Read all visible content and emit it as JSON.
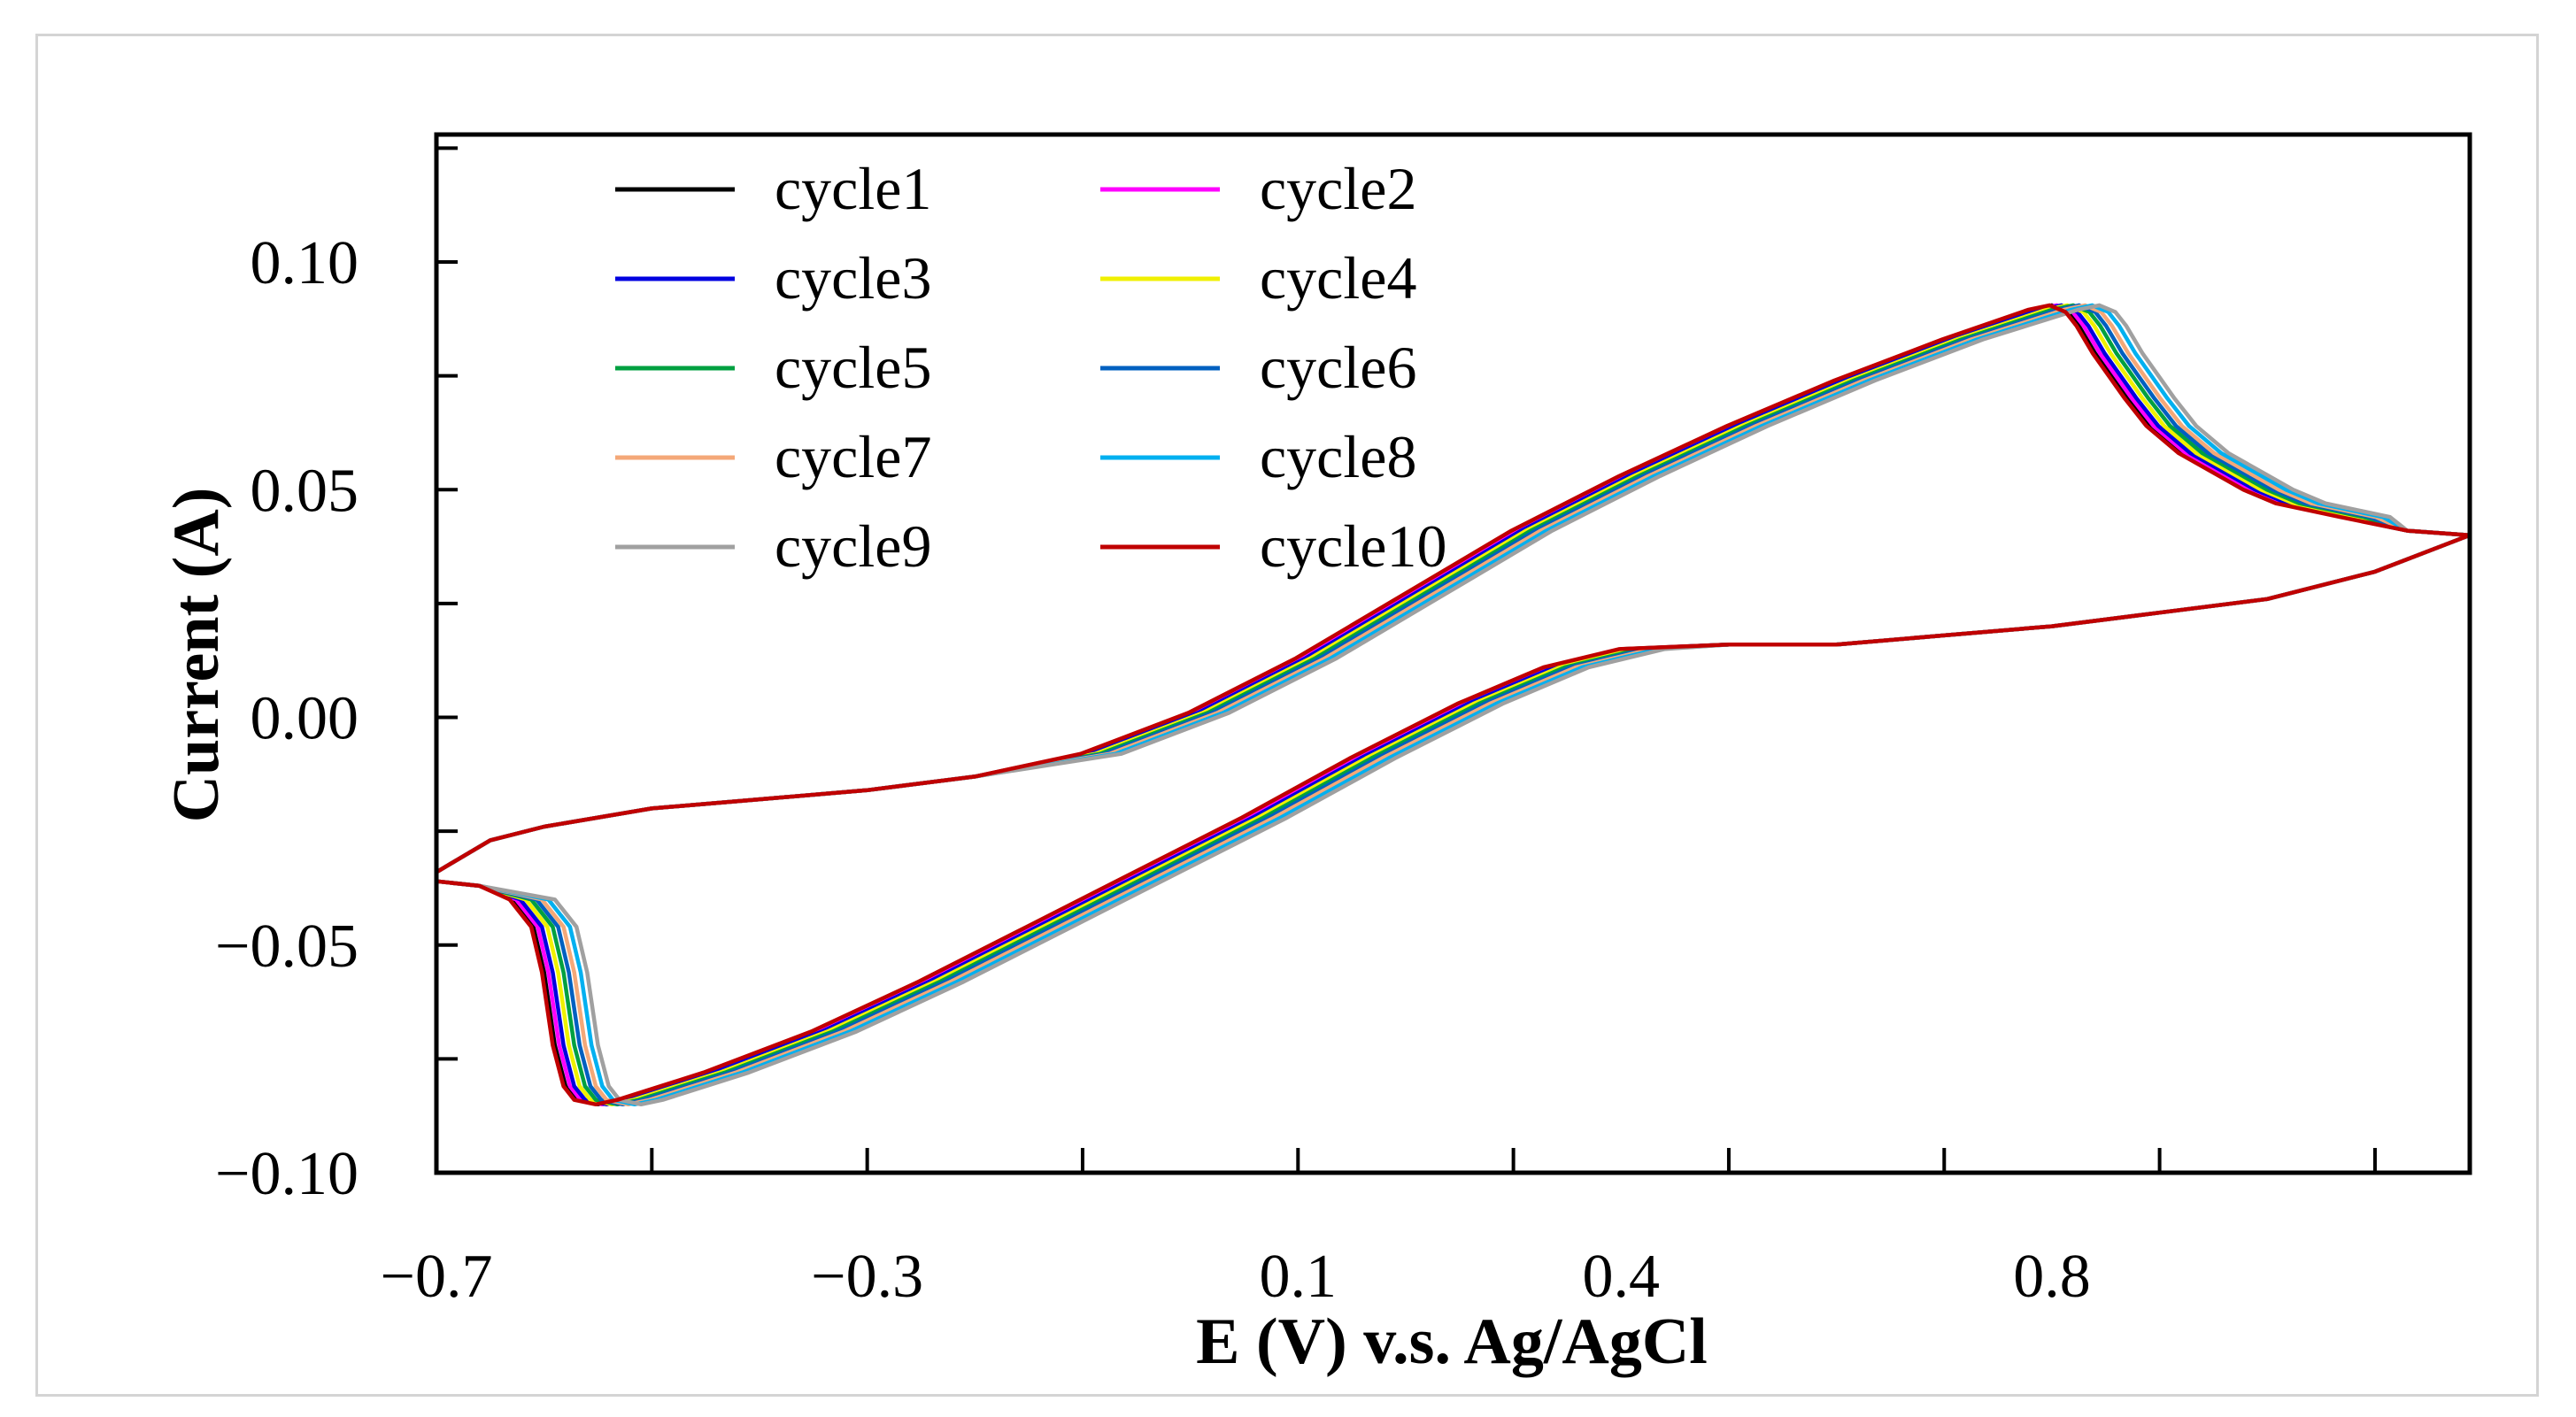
{
  "chart_data": {
    "type": "line",
    "title": "",
    "xlabel": "E (V) v.s. Ag/AgCl",
    "ylabel": "Current (A)",
    "xlim": [
      -0.7,
      1.188
    ],
    "ylim": [
      -0.1,
      0.128
    ],
    "x_tick_values": [
      -0.7,
      -0.3,
      0.1,
      0.4,
      0.8
    ],
    "x_tick_labels": [
      "−0.7",
      "−0.3",
      "0.1",
      "0.4",
      "0.8"
    ],
    "y_tick_values": [
      0.1,
      0.05,
      0.0,
      -0.05,
      -0.1
    ],
    "y_tick_labels": [
      "0.10",
      "0.05",
      "0.00",
      "−0.05",
      "−0.10"
    ],
    "grid": false,
    "legend_position": "top-left",
    "series": [
      {
        "name": "cycle1",
        "color": "#000000",
        "shift": 0.0
      },
      {
        "name": "cycle2",
        "color": "#ff00ff",
        "shift": 0.004
      },
      {
        "name": "cycle3",
        "color": "#0000e0",
        "shift": 0.008
      },
      {
        "name": "cycle4",
        "color": "#f0f000",
        "shift": 0.013
      },
      {
        "name": "cycle5",
        "color": "#00a040",
        "shift": 0.018
      },
      {
        "name": "cycle6",
        "color": "#0060c0",
        "shift": 0.023
      },
      {
        "name": "cycle7",
        "color": "#f4a878",
        "shift": 0.028
      },
      {
        "name": "cycle8",
        "color": "#00b0f0",
        "shift": 0.034
      },
      {
        "name": "cycle9",
        "color": "#a0a0a0",
        "shift": 0.04
      },
      {
        "name": "cycle10",
        "color": "#c00000",
        "shift": -0.002
      }
    ],
    "reverse_scan": [
      [
        1.188,
        0.04
      ],
      [
        1.13,
        0.041
      ],
      [
        1.07,
        0.044
      ],
      [
        1.01,
        0.047
      ],
      [
        0.98,
        0.05
      ],
      [
        0.95,
        0.054
      ],
      [
        0.92,
        0.058
      ],
      [
        0.89,
        0.064
      ],
      [
        0.87,
        0.07
      ],
      [
        0.855,
        0.075
      ],
      [
        0.84,
        0.08
      ],
      [
        0.825,
        0.086
      ],
      [
        0.815,
        0.089
      ],
      [
        0.8,
        0.0905
      ],
      [
        0.78,
        0.0895
      ],
      [
        0.7,
        0.083
      ],
      [
        0.6,
        0.074
      ],
      [
        0.5,
        0.064
      ],
      [
        0.4,
        0.053
      ],
      [
        0.3,
        0.041
      ],
      [
        0.2,
        0.027
      ],
      [
        0.1,
        0.013
      ],
      [
        0.0,
        0.001
      ],
      [
        -0.1,
        -0.008
      ],
      [
        -0.2,
        -0.013
      ],
      [
        -0.3,
        -0.016
      ],
      [
        -0.4,
        -0.018
      ],
      [
        -0.5,
        -0.02
      ],
      [
        -0.6,
        -0.024
      ],
      [
        -0.65,
        -0.027
      ],
      [
        -0.7,
        -0.034
      ]
    ],
    "forward_scan": [
      [
        -0.7,
        -0.036
      ],
      [
        -0.66,
        -0.037
      ],
      [
        -0.63,
        -0.04
      ],
      [
        -0.61,
        -0.046
      ],
      [
        -0.6,
        -0.056
      ],
      [
        -0.59,
        -0.072
      ],
      [
        -0.58,
        -0.081
      ],
      [
        -0.57,
        -0.084
      ],
      [
        -0.55,
        -0.085
      ],
      [
        -0.53,
        -0.084
      ],
      [
        -0.45,
        -0.078
      ],
      [
        -0.35,
        -0.069
      ],
      [
        -0.25,
        -0.058
      ],
      [
        -0.15,
        -0.046
      ],
      [
        -0.05,
        -0.034
      ],
      [
        0.05,
        -0.022
      ],
      [
        0.15,
        -0.009
      ],
      [
        0.25,
        0.003
      ],
      [
        0.33,
        0.011
      ],
      [
        0.4,
        0.015
      ],
      [
        0.5,
        0.016
      ],
      [
        0.6,
        0.016
      ],
      [
        0.7,
        0.018
      ],
      [
        0.8,
        0.02
      ],
      [
        0.9,
        0.023
      ],
      [
        1.0,
        0.026
      ],
      [
        1.1,
        0.032
      ],
      [
        1.188,
        0.04
      ]
    ]
  }
}
